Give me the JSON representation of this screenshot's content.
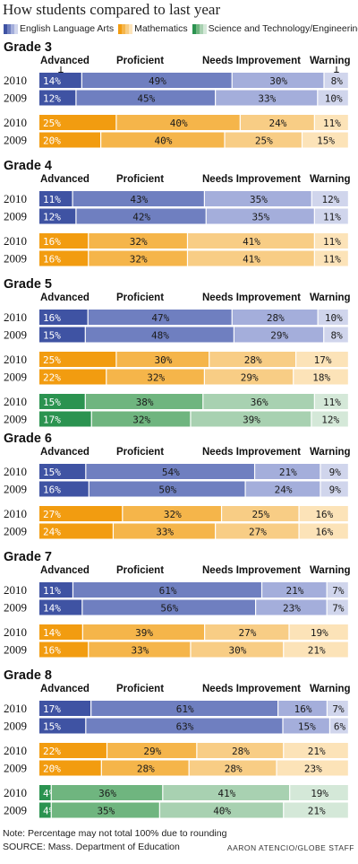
{
  "title": "How students compared to last year",
  "legend": {
    "items": [
      {
        "label": "English Language Arts",
        "colors": [
          "#3f53a3",
          "#6f7fc0",
          "#a4aedb",
          "#d0d5ec"
        ]
      },
      {
        "label": "Mathematics",
        "colors": [
          "#f29c10",
          "#f5b54a",
          "#f8cd85",
          "#fce3b8"
        ]
      },
      {
        "label": "Science and Technology/Engineering",
        "colors": [
          "#2b9350",
          "#6fb57f",
          "#a8d1b1",
          "#d4e8d8"
        ]
      }
    ]
  },
  "level_labels": [
    "Advanced",
    "Proficient",
    "Needs Improvement",
    "Warning"
  ],
  "colors": {
    "ela": [
      "#3f53a3",
      "#6f7fc0",
      "#a4aedb",
      "#d0d5ec"
    ],
    "math": [
      "#f29c10",
      "#f5b54a",
      "#f8cd85",
      "#fce3b8"
    ],
    "sci": [
      "#2b9350",
      "#6fb57f",
      "#a8d1b1",
      "#d4e8d8"
    ]
  },
  "chart_data": {
    "type": "bar",
    "stacked": true,
    "orientation": "horizontal",
    "unit": "%",
    "categories": [
      "Advanced",
      "Proficient",
      "Needs Improvement",
      "Warning"
    ],
    "grades": [
      {
        "grade": "Grade 3",
        "subjects": [
          {
            "subject": "ela",
            "rows": [
              {
                "year": "2010",
                "values": [
                  14,
                  49,
                  30,
                  8
                ]
              },
              {
                "year": "2009",
                "values": [
                  12,
                  45,
                  33,
                  10
                ]
              }
            ]
          },
          {
            "subject": "math",
            "rows": [
              {
                "year": "2010",
                "values": [
                  25,
                  40,
                  24,
                  11
                ]
              },
              {
                "year": "2009",
                "values": [
                  20,
                  40,
                  25,
                  15
                ]
              }
            ]
          }
        ]
      },
      {
        "grade": "Grade 4",
        "subjects": [
          {
            "subject": "ela",
            "rows": [
              {
                "year": "2010",
                "values": [
                  11,
                  43,
                  35,
                  12
                ]
              },
              {
                "year": "2009",
                "values": [
                  12,
                  42,
                  35,
                  11
                ]
              }
            ]
          },
          {
            "subject": "math",
            "rows": [
              {
                "year": "2010",
                "values": [
                  16,
                  32,
                  41,
                  11
                ]
              },
              {
                "year": "2009",
                "values": [
                  16,
                  32,
                  41,
                  11
                ]
              }
            ]
          }
        ]
      },
      {
        "grade": "Grade 5",
        "subjects": [
          {
            "subject": "ela",
            "rows": [
              {
                "year": "2010",
                "values": [
                  16,
                  47,
                  28,
                  10
                ]
              },
              {
                "year": "2009",
                "values": [
                  15,
                  48,
                  29,
                  8
                ]
              }
            ]
          },
          {
            "subject": "math",
            "rows": [
              {
                "year": "2010",
                "values": [
                  25,
                  30,
                  28,
                  17
                ]
              },
              {
                "year": "2009",
                "values": [
                  22,
                  32,
                  29,
                  18
                ]
              }
            ]
          },
          {
            "subject": "sci",
            "rows": [
              {
                "year": "2010",
                "values": [
                  15,
                  38,
                  36,
                  11
                ]
              },
              {
                "year": "2009",
                "values": [
                  17,
                  32,
                  39,
                  12
                ]
              }
            ]
          }
        ]
      },
      {
        "grade": "Grade 6",
        "subjects": [
          {
            "subject": "ela",
            "rows": [
              {
                "year": "2010",
                "values": [
                  15,
                  54,
                  21,
                  9
                ]
              },
              {
                "year": "2009",
                "values": [
                  16,
                  50,
                  24,
                  9
                ]
              }
            ]
          },
          {
            "subject": "math",
            "rows": [
              {
                "year": "2010",
                "values": [
                  27,
                  32,
                  25,
                  16
                ]
              },
              {
                "year": "2009",
                "values": [
                  24,
                  33,
                  27,
                  16
                ]
              }
            ]
          }
        ]
      },
      {
        "grade": "Grade 7",
        "subjects": [
          {
            "subject": "ela",
            "rows": [
              {
                "year": "2010",
                "values": [
                  11,
                  61,
                  21,
                  7
                ]
              },
              {
                "year": "2009",
                "values": [
                  14,
                  56,
                  23,
                  7
                ]
              }
            ]
          },
          {
            "subject": "math",
            "rows": [
              {
                "year": "2010",
                "values": [
                  14,
                  39,
                  27,
                  19
                ]
              },
              {
                "year": "2009",
                "values": [
                  16,
                  33,
                  30,
                  21
                ]
              }
            ]
          }
        ]
      },
      {
        "grade": "Grade 8",
        "subjects": [
          {
            "subject": "ela",
            "rows": [
              {
                "year": "2010",
                "values": [
                  17,
                  61,
                  16,
                  7
                ]
              },
              {
                "year": "2009",
                "values": [
                  15,
                  63,
                  15,
                  6
                ]
              }
            ]
          },
          {
            "subject": "math",
            "rows": [
              {
                "year": "2010",
                "values": [
                  22,
                  29,
                  28,
                  21
                ]
              },
              {
                "year": "2009",
                "values": [
                  20,
                  28,
                  28,
                  23
                ]
              }
            ]
          },
          {
            "subject": "sci",
            "rows": [
              {
                "year": "2010",
                "values": [
                  4,
                  36,
                  41,
                  19
                ]
              },
              {
                "year": "2009",
                "values": [
                  4,
                  35,
                  40,
                  21
                ]
              }
            ]
          }
        ]
      }
    ]
  },
  "note": "Note: Percentage may not total 100% due to rounding",
  "source": "SOURCE: Mass. Department of Education",
  "credit": "AARON ATENCIO/GLOBE STAFF"
}
